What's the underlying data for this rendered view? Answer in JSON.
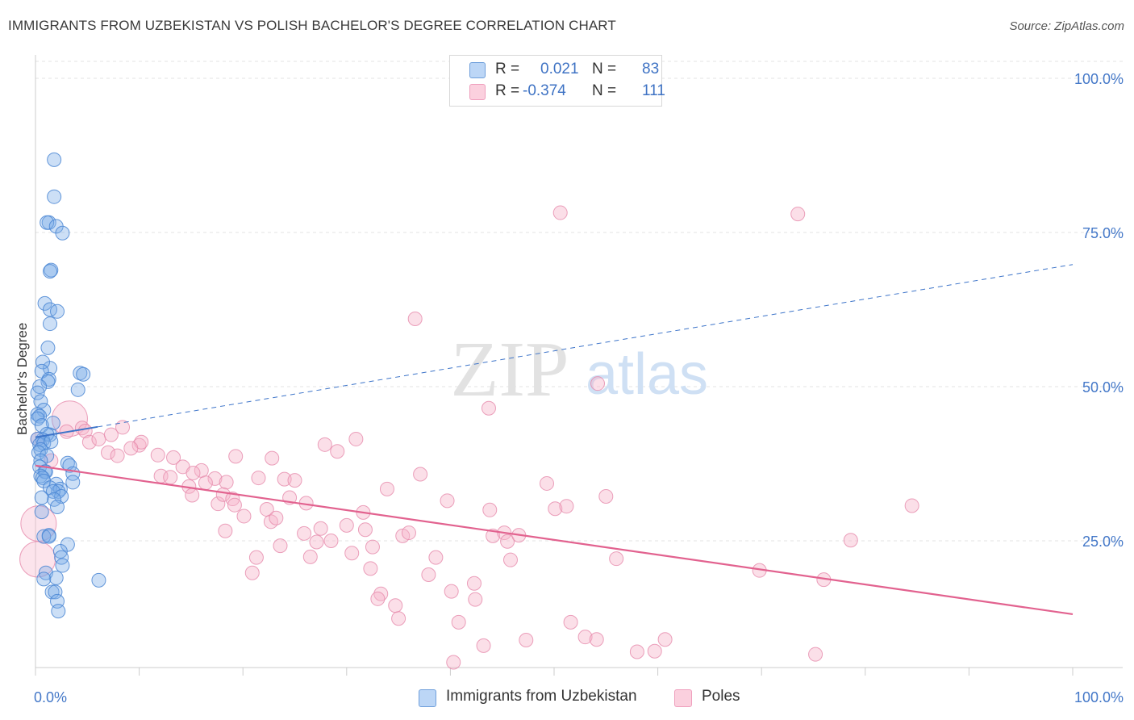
{
  "title": "IMMIGRANTS FROM UZBEKISTAN VS POLISH BACHELOR'S DEGREE CORRELATION CHART",
  "source": "Source: ZipAtlas.com",
  "watermark": {
    "zip": "ZIP",
    "atlas": "atlas"
  },
  "legend": {
    "rows": [
      {
        "r_label": "R =",
        "r_value": "0.021",
        "n_label": "N =",
        "n_value": "83",
        "color": "#9dc3f0",
        "border": "#5f95d8"
      },
      {
        "r_label": "R =",
        "r_value": "-0.374",
        "n_label": "N =",
        "n_value": "111",
        "color": "#f9bfd2",
        "border": "#ee8fb0"
      }
    ]
  },
  "bottom_legend": {
    "blue": "Immigrants from Uzbekistan",
    "pink": "Poles"
  },
  "chart_data": {
    "type": "scatter",
    "title": "IMMIGRANTS FROM UZBEKISTAN VS POLISH BACHELOR'S DEGREE CORRELATION CHART",
    "xlabel": "",
    "ylabel": "Bachelor's Degree",
    "xlim": [
      0,
      100
    ],
    "ylim": [
      0,
      100
    ],
    "x_tick_labels": [
      "0.0%",
      "100.0%"
    ],
    "y_tick_labels": [
      "100.0%",
      "75.0%",
      "50.0%",
      "25.0%"
    ],
    "y_ticks": [
      100,
      75,
      50,
      25
    ],
    "grid": true,
    "series": [
      {
        "name": "Immigrants from Uzbekistan",
        "color": "#7aaae8",
        "stroke": "#4a86d4",
        "trend": {
          "x": [
            0,
            100
          ],
          "y": [
            41.8,
            69.8
          ],
          "solid_until": 6,
          "style": "dashed"
        },
        "points": [
          [
            1.8,
            86.8
          ],
          [
            1.8,
            80.8
          ],
          [
            1.3,
            76.6
          ],
          [
            1.1,
            76.6
          ],
          [
            2.0,
            76.0
          ],
          [
            2.6,
            74.9
          ],
          [
            1.5,
            68.9
          ],
          [
            1.4,
            68.7
          ],
          [
            0.9,
            63.5
          ],
          [
            1.4,
            62.5
          ],
          [
            2.1,
            62.2
          ],
          [
            1.4,
            60.2
          ],
          [
            1.2,
            56.3
          ],
          [
            1.4,
            53.0
          ],
          [
            0.7,
            54.0
          ],
          [
            0.6,
            52.5
          ],
          [
            1.3,
            51.2
          ],
          [
            1.2,
            50.8
          ],
          [
            0.4,
            50.0
          ],
          [
            4.3,
            52.2
          ],
          [
            4.6,
            52.0
          ],
          [
            4.1,
            49.5
          ],
          [
            0.2,
            49.0
          ],
          [
            0.5,
            47.6
          ],
          [
            0.8,
            46.2
          ],
          [
            0.2,
            45.5
          ],
          [
            0.4,
            45.2
          ],
          [
            0.2,
            44.8
          ],
          [
            1.7,
            44.1
          ],
          [
            0.6,
            43.7
          ],
          [
            1.4,
            42.2
          ],
          [
            1.1,
            42.3
          ],
          [
            0.7,
            41.4
          ],
          [
            0.2,
            41.5
          ],
          [
            0.4,
            40.6
          ],
          [
            0.8,
            40.8
          ],
          [
            1.5,
            41.1
          ],
          [
            0.5,
            39.8
          ],
          [
            0.3,
            39.3
          ],
          [
            1.1,
            38.8
          ],
          [
            0.5,
            38.0
          ],
          [
            3.1,
            37.6
          ],
          [
            3.3,
            37.2
          ],
          [
            0.4,
            37.0
          ],
          [
            0.9,
            36.2
          ],
          [
            1.0,
            36.2
          ],
          [
            3.6,
            35.9
          ],
          [
            0.5,
            35.5
          ],
          [
            0.7,
            35.2
          ],
          [
            0.8,
            34.7
          ],
          [
            3.6,
            34.5
          ],
          [
            2.0,
            34.2
          ],
          [
            1.4,
            33.6
          ],
          [
            2.4,
            33.4
          ],
          [
            2.2,
            33.0
          ],
          [
            1.7,
            33.0
          ],
          [
            2.5,
            32.2
          ],
          [
            0.6,
            32.0
          ],
          [
            1.8,
            31.7
          ],
          [
            2.1,
            30.5
          ],
          [
            0.6,
            29.7
          ],
          [
            1.3,
            25.9
          ],
          [
            0.8,
            25.7
          ],
          [
            1.3,
            25.7
          ],
          [
            3.1,
            24.4
          ],
          [
            2.4,
            23.3
          ],
          [
            2.5,
            22.3
          ],
          [
            2.6,
            21.0
          ],
          [
            1.0,
            19.8
          ],
          [
            2.0,
            19.0
          ],
          [
            0.8,
            18.8
          ],
          [
            6.1,
            18.6
          ],
          [
            1.6,
            16.7
          ],
          [
            1.9,
            16.7
          ],
          [
            2.1,
            15.2
          ],
          [
            2.2,
            13.6
          ]
        ]
      },
      {
        "name": "Poles",
        "color": "#f5b3c8",
        "stroke": "#e68aab",
        "trend": {
          "x": [
            0,
            100
          ],
          "y": [
            37.2,
            13.1
          ],
          "style": "solid"
        },
        "points": [
          [
            0.2,
            41.5
          ],
          [
            0.3,
            27.8
          ],
          [
            0.2,
            22.0
          ],
          [
            3.3,
            44.8
          ],
          [
            3.0,
            42.7
          ],
          [
            4.5,
            43.3
          ],
          [
            4.8,
            42.8
          ],
          [
            5.2,
            41.0
          ],
          [
            6.1,
            41.5
          ],
          [
            7.3,
            42.2
          ],
          [
            8.4,
            43.4
          ],
          [
            10.0,
            40.5
          ],
          [
            10.2,
            41.0
          ],
          [
            9.2,
            40.0
          ],
          [
            7.0,
            39.3
          ],
          [
            7.9,
            38.8
          ],
          [
            11.8,
            38.9
          ],
          [
            13.3,
            38.5
          ],
          [
            1.5,
            38.0
          ],
          [
            14.2,
            37.0
          ],
          [
            16.0,
            36.4
          ],
          [
            15.2,
            36.0
          ],
          [
            12.1,
            35.5
          ],
          [
            13.0,
            35.3
          ],
          [
            17.3,
            35.1
          ],
          [
            16.4,
            34.4
          ],
          [
            18.4,
            34.5
          ],
          [
            14.8,
            33.8
          ],
          [
            15.1,
            32.4
          ],
          [
            17.6,
            31.0
          ],
          [
            18.1,
            32.5
          ],
          [
            19.0,
            31.8
          ],
          [
            19.2,
            30.8
          ],
          [
            20.1,
            29.0
          ],
          [
            18.3,
            26.6
          ],
          [
            19.3,
            38.7
          ],
          [
            21.5,
            35.2
          ],
          [
            22.8,
            38.4
          ],
          [
            24.0,
            35.0
          ],
          [
            25.0,
            34.8
          ],
          [
            22.3,
            30.1
          ],
          [
            22.7,
            28.1
          ],
          [
            23.2,
            28.7
          ],
          [
            24.5,
            32.0
          ],
          [
            23.6,
            24.2
          ],
          [
            25.9,
            26.2
          ],
          [
            26.1,
            31.1
          ],
          [
            27.1,
            24.8
          ],
          [
            26.5,
            22.4
          ],
          [
            27.5,
            27.0
          ],
          [
            28.5,
            25.0
          ],
          [
            27.9,
            40.6
          ],
          [
            29.1,
            39.5
          ],
          [
            30.0,
            27.5
          ],
          [
            30.5,
            23.0
          ],
          [
            30.9,
            41.5
          ],
          [
            31.6,
            29.6
          ],
          [
            31.8,
            26.8
          ],
          [
            32.3,
            20.5
          ],
          [
            32.5,
            24.0
          ],
          [
            21.3,
            22.3
          ],
          [
            20.9,
            19.8
          ],
          [
            33.3,
            16.4
          ],
          [
            33.0,
            15.6
          ],
          [
            33.9,
            33.4
          ],
          [
            34.7,
            14.5
          ],
          [
            35.0,
            12.4
          ],
          [
            35.4,
            25.8
          ],
          [
            36.0,
            26.3
          ],
          [
            37.1,
            35.8
          ],
          [
            37.9,
            19.5
          ],
          [
            38.6,
            22.3
          ],
          [
            36.6,
            61.0
          ],
          [
            39.7,
            31.5
          ],
          [
            40.1,
            16.8
          ],
          [
            40.8,
            11.8
          ],
          [
            42.3,
            18.1
          ],
          [
            42.4,
            15.5
          ],
          [
            43.2,
            8.0
          ],
          [
            40.3,
            5.3
          ],
          [
            43.7,
            46.5
          ],
          [
            44.1,
            25.8
          ],
          [
            43.8,
            30.0
          ],
          [
            45.2,
            26.3
          ],
          [
            45.5,
            24.9
          ],
          [
            45.8,
            21.9
          ],
          [
            46.6,
            25.9
          ],
          [
            47.3,
            8.9
          ],
          [
            49.3,
            34.3
          ],
          [
            50.1,
            30.2
          ],
          [
            51.2,
            30.6
          ],
          [
            50.6,
            78.2
          ],
          [
            51.6,
            11.8
          ],
          [
            53.0,
            9.4
          ],
          [
            54.1,
            9.0
          ],
          [
            54.2,
            50.5
          ],
          [
            55.0,
            32.2
          ],
          [
            56.0,
            22.1
          ],
          [
            58.0,
            7.0
          ],
          [
            59.7,
            7.1
          ],
          [
            60.7,
            9.0
          ],
          [
            69.8,
            20.2
          ],
          [
            73.5,
            78.0
          ],
          [
            75.2,
            6.6
          ],
          [
            76.0,
            18.7
          ],
          [
            78.6,
            25.1
          ],
          [
            84.5,
            30.7
          ]
        ],
        "large_points": [
          [
            0.3,
            27.8
          ],
          [
            0.2,
            22.0
          ],
          [
            3.3,
            44.8
          ]
        ]
      }
    ]
  }
}
